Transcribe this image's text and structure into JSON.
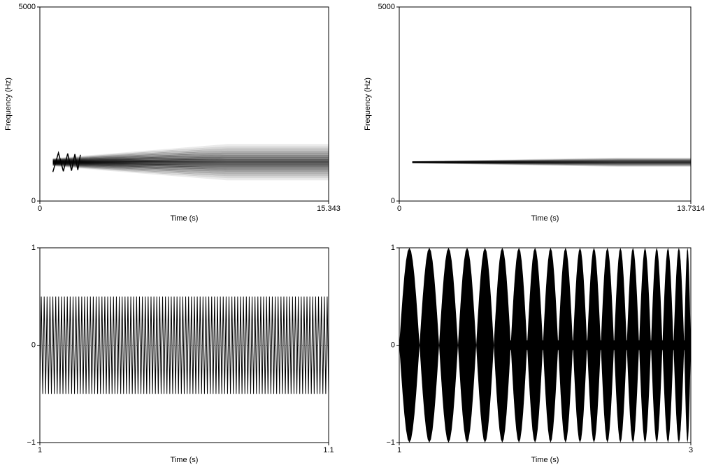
{
  "chart_data": [
    {
      "type": "spectrogram",
      "xlabel": "Time (s)",
      "ylabel": "Frequency (Hz)",
      "xlim": [
        0,
        15.343
      ],
      "xticks": [
        0,
        15.343
      ],
      "ylim": [
        0,
        5000
      ],
      "yticks": [
        0,
        5000
      ],
      "center_frequency": 1000
    },
    {
      "type": "spectrogram",
      "xlabel": "Time (s)",
      "ylabel": "Frequency (Hz)",
      "xlim": [
        0,
        13.7314
      ],
      "xticks": [
        0,
        13.7314
      ],
      "ylim": [
        0,
        5000
      ],
      "yticks": [
        0,
        5000
      ],
      "center_frequency": 1000
    },
    {
      "type": "waveform",
      "xlabel": "Time (s)",
      "xlim": [
        1,
        1.1
      ],
      "xticks": [
        1,
        1.1
      ],
      "ylim": [
        -1,
        1
      ],
      "yticks": [
        {
          "value": -1,
          "label": "−1"
        },
        0,
        1
      ],
      "amplitude": 0.5
    },
    {
      "type": "beating",
      "xlabel": "Time (s)",
      "xlim": [
        1,
        3
      ],
      "xticks": [
        1,
        3
      ],
      "ylim": [
        -1,
        1
      ],
      "yticks": [
        {
          "value": -1,
          "label": "−1"
        },
        0,
        1
      ],
      "amplitude": 1
    }
  ]
}
